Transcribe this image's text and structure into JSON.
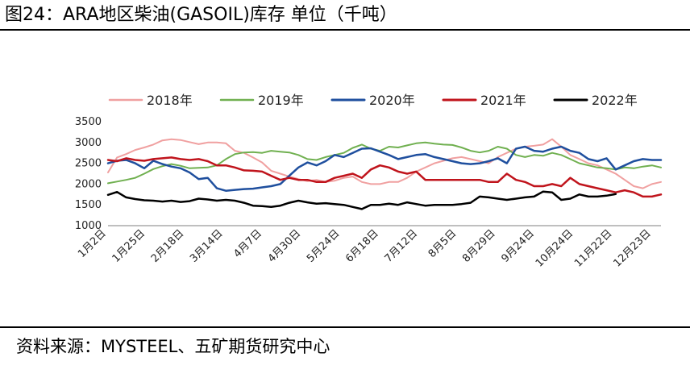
{
  "header": {
    "title": "图24：ARA地区柴油(GASOIL)库存 单位（千吨）"
  },
  "footer": {
    "source": "资料来源：MYSTEEL、五矿期货研究中心"
  },
  "chart_data": {
    "type": "line",
    "xlabel": "",
    "ylabel": "",
    "ylim": [
      1000,
      3500
    ],
    "yticks": [
      1000,
      1500,
      2000,
      2500,
      3000,
      3500
    ],
    "x_tick_labels": [
      "1月2日",
      "1月25日",
      "2月18日",
      "3月14日",
      "4月7日",
      "4月30日",
      "5月24日",
      "6月18日",
      "7月12日",
      "8月5日",
      "8月29日",
      "9月24日",
      "10月24日",
      "11月22日",
      "12月23日"
    ],
    "grid": false,
    "legend": "top",
    "series": [
      {
        "name": "2018年",
        "color": "#f0a0a0",
        "width": 2,
        "values": [
          2280,
          2640,
          2720,
          2820,
          2880,
          2950,
          3050,
          3080,
          3060,
          3010,
          2960,
          3000,
          3000,
          2980,
          2800,
          2750,
          2640,
          2520,
          2320,
          2250,
          2180,
          2120,
          2070,
          2100,
          2050,
          2080,
          2150,
          2180,
          2050,
          2000,
          2000,
          2050,
          2050,
          2150,
          2300,
          2400,
          2500,
          2560,
          2620,
          2650,
          2600,
          2550,
          2500,
          2650,
          2750,
          2850,
          2900,
          2920,
          2950,
          3080,
          2900,
          2700,
          2600,
          2500,
          2450,
          2350,
          2250,
          2100,
          1950,
          1900,
          2000,
          2050
        ]
      },
      {
        "name": "2019年",
        "color": "#70b050",
        "width": 2,
        "values": [
          2020,
          2060,
          2100,
          2150,
          2250,
          2360,
          2430,
          2480,
          2440,
          2380,
          2390,
          2400,
          2450,
          2600,
          2720,
          2760,
          2770,
          2750,
          2800,
          2780,
          2760,
          2700,
          2600,
          2580,
          2650,
          2700,
          2750,
          2870,
          2950,
          2850,
          2800,
          2900,
          2880,
          2930,
          2980,
          3000,
          2970,
          2950,
          2940,
          2880,
          2800,
          2760,
          2800,
          2900,
          2850,
          2700,
          2650,
          2700,
          2680,
          2750,
          2700,
          2600,
          2500,
          2450,
          2400,
          2380,
          2350,
          2400,
          2380,
          2420,
          2450,
          2400
        ]
      },
      {
        "name": "2020年",
        "color": "#1f4f9e",
        "width": 2.5,
        "values": [
          2500,
          2560,
          2580,
          2500,
          2380,
          2560,
          2480,
          2420,
          2380,
          2280,
          2120,
          2150,
          1900,
          1840,
          1860,
          1880,
          1890,
          1920,
          1950,
          2000,
          2200,
          2400,
          2520,
          2450,
          2550,
          2700,
          2650,
          2750,
          2850,
          2860,
          2780,
          2700,
          2600,
          2650,
          2700,
          2720,
          2650,
          2600,
          2550,
          2500,
          2480,
          2500,
          2550,
          2620,
          2500,
          2850,
          2900,
          2800,
          2780,
          2850,
          2900,
          2800,
          2750,
          2600,
          2550,
          2620,
          2350,
          2450,
          2550,
          2600,
          2580,
          2580
        ]
      },
      {
        "name": "2021年",
        "color": "#c0141c",
        "width": 2.5,
        "values": [
          2580,
          2550,
          2620,
          2580,
          2560,
          2600,
          2620,
          2640,
          2600,
          2580,
          2600,
          2550,
          2450,
          2450,
          2400,
          2330,
          2320,
          2300,
          2200,
          2100,
          2150,
          2100,
          2100,
          2050,
          2050,
          2150,
          2200,
          2250,
          2150,
          2350,
          2450,
          2400,
          2300,
          2250,
          2300,
          2100,
          2100,
          2100,
          2100,
          2100,
          2100,
          2100,
          2050,
          2050,
          2250,
          2100,
          2050,
          1950,
          1950,
          2000,
          1950,
          2150,
          2000,
          1950,
          1900,
          1850,
          1800,
          1850,
          1800,
          1700,
          1700,
          1750
        ]
      },
      {
        "name": "2022年",
        "color": "#000000",
        "width": 2.5,
        "values": [
          1740,
          1810,
          1680,
          1640,
          1610,
          1600,
          1580,
          1600,
          1570,
          1590,
          1650,
          1630,
          1600,
          1620,
          1600,
          1550,
          1480,
          1470,
          1450,
          1480,
          1550,
          1600,
          1560,
          1530,
          1540,
          1520,
          1500,
          1450,
          1400,
          1500,
          1500,
          1530,
          1500,
          1560,
          1520,
          1480,
          1500,
          1500,
          1500,
          1520,
          1550,
          1700,
          1680,
          1650,
          1620,
          1650,
          1680,
          1700,
          1820,
          1800,
          1620,
          1650,
          1750,
          1700,
          1700,
          1720,
          1760
        ]
      }
    ]
  }
}
